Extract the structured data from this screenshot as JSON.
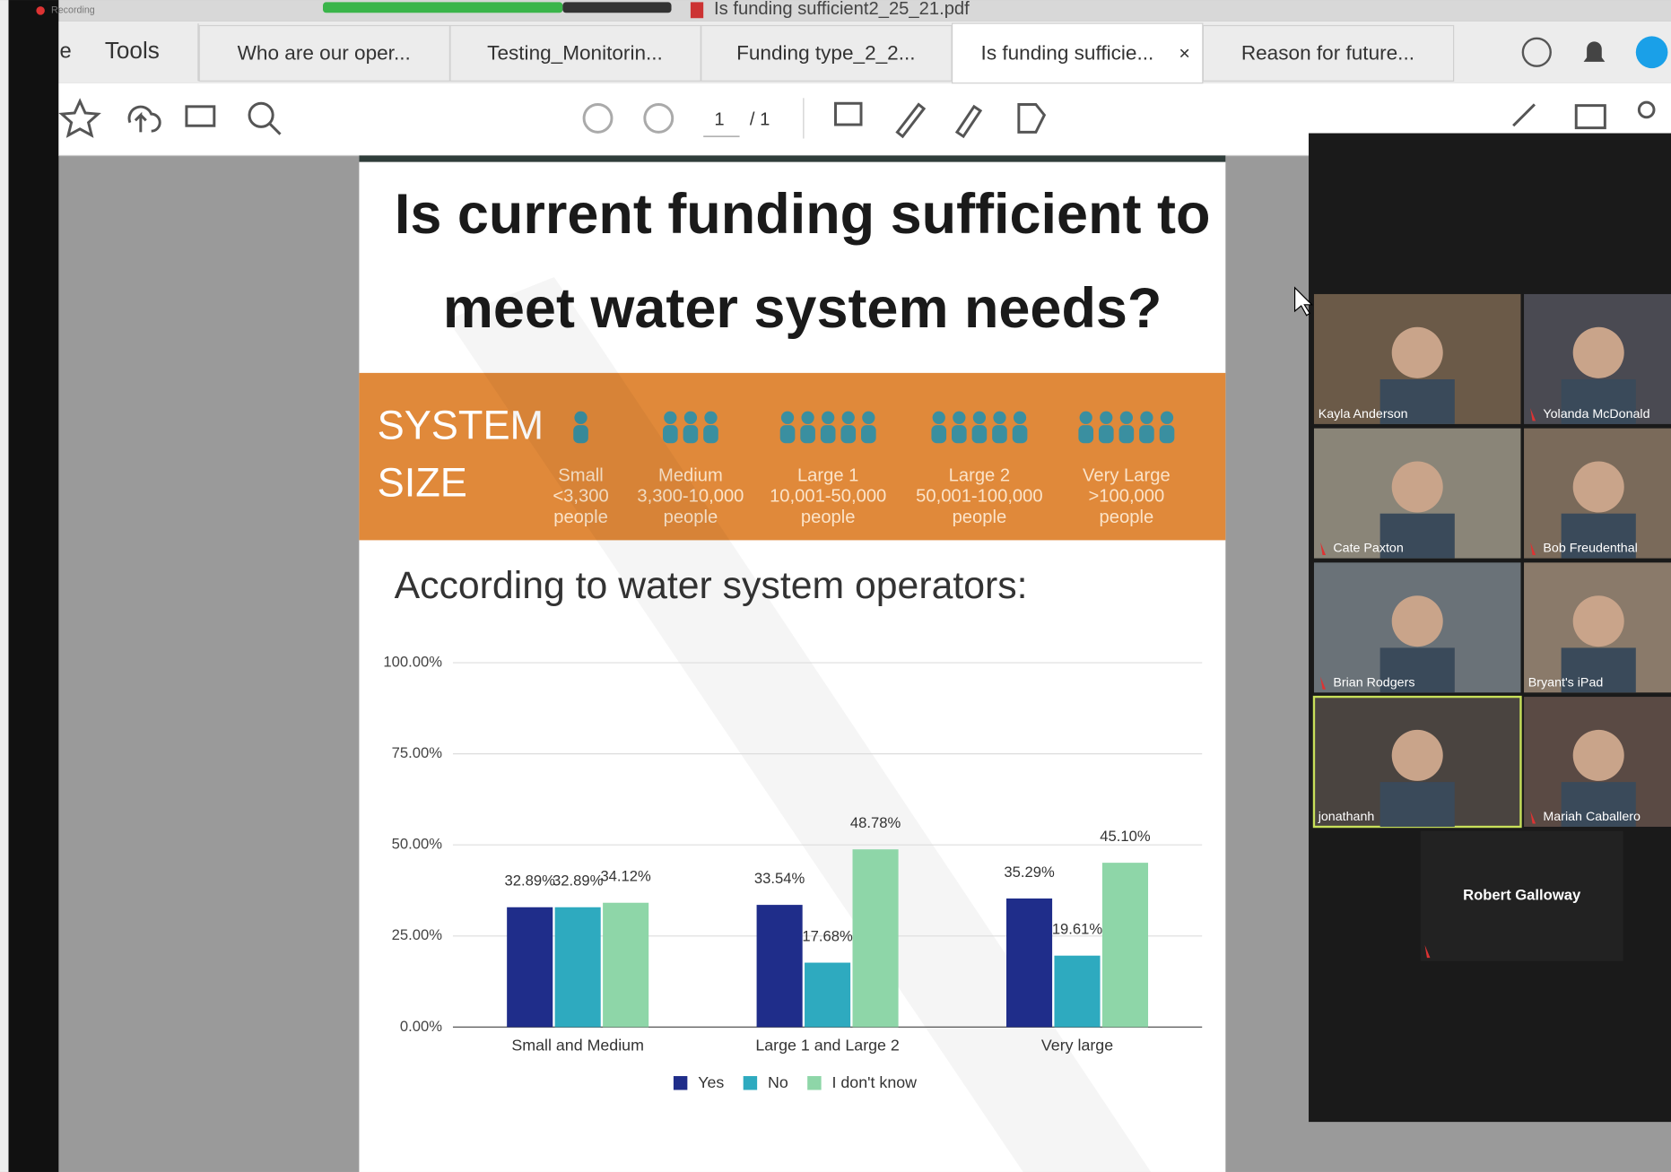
{
  "window": {
    "recording": "Recording",
    "file": "Is funding sufficient2_25_21.pdf"
  },
  "tabs": {
    "partial": "e",
    "tools": "Tools",
    "items": [
      "Who are our oper...",
      "Testing_Monitorin...",
      "Funding type_2_2...",
      "Is funding sufficie...",
      "Reason for future..."
    ],
    "close": "×"
  },
  "toolbar": {
    "page": "1",
    "pages": "/ 1"
  },
  "slide": {
    "title": [
      "Is current funding sufficient to",
      "meet water system needs?"
    ],
    "system_size": [
      "SYSTEM",
      "SIZE"
    ],
    "sizes": [
      {
        "name": "Small",
        "range": "<3,300",
        "unit": "people"
      },
      {
        "name": "Medium",
        "range": "3,300-10,000",
        "unit": "people"
      },
      {
        "name": "Large 1",
        "range": "10,001-50,000",
        "unit": "people"
      },
      {
        "name": "Large 2",
        "range": "50,001-100,000",
        "unit": "people"
      },
      {
        "name": "Very Large",
        "range": ">100,000",
        "unit": "people"
      }
    ],
    "subtitle": "According to water system operators:"
  },
  "chart_data": {
    "type": "bar",
    "categories": [
      "Small and Medium",
      "Large 1 and Large 2",
      "Very large"
    ],
    "series": [
      {
        "name": "Yes",
        "color": "#1f2d8a",
        "values": [
          32.89,
          33.54,
          35.29
        ],
        "value_labels": [
          "32.89%",
          "33.54%",
          "35.29%"
        ]
      },
      {
        "name": "No",
        "color": "#2eaabf",
        "values": [
          32.89,
          17.68,
          19.61
        ],
        "value_labels": [
          "32.89%",
          "17.68%",
          "19.61%"
        ]
      },
      {
        "name": "I don't know",
        "color": "#8ed6a8",
        "values": [
          34.12,
          48.78,
          45.1
        ],
        "value_labels": [
          "34.12%",
          "48.78%",
          "45.10%"
        ]
      }
    ],
    "ylim": [
      0,
      100
    ],
    "yticks": [
      {
        "value": 0,
        "label": "0.00%"
      },
      {
        "value": 25,
        "label": "25.00%"
      },
      {
        "value": 50,
        "label": "50.00%"
      },
      {
        "value": 75,
        "label": "75.00%"
      },
      {
        "value": 100,
        "label": "100.00%"
      }
    ],
    "grid": true,
    "legend": "bottom"
  },
  "meeting": {
    "participants": [
      "Kayla Anderson",
      "Yolanda McDonald",
      "Cate Paxton",
      "Bob Freudenthal",
      "Brian Rodgers",
      "Bryant's iPad",
      "jonathanh",
      "Mariah Caballero"
    ],
    "speaker": "Robert Galloway"
  }
}
